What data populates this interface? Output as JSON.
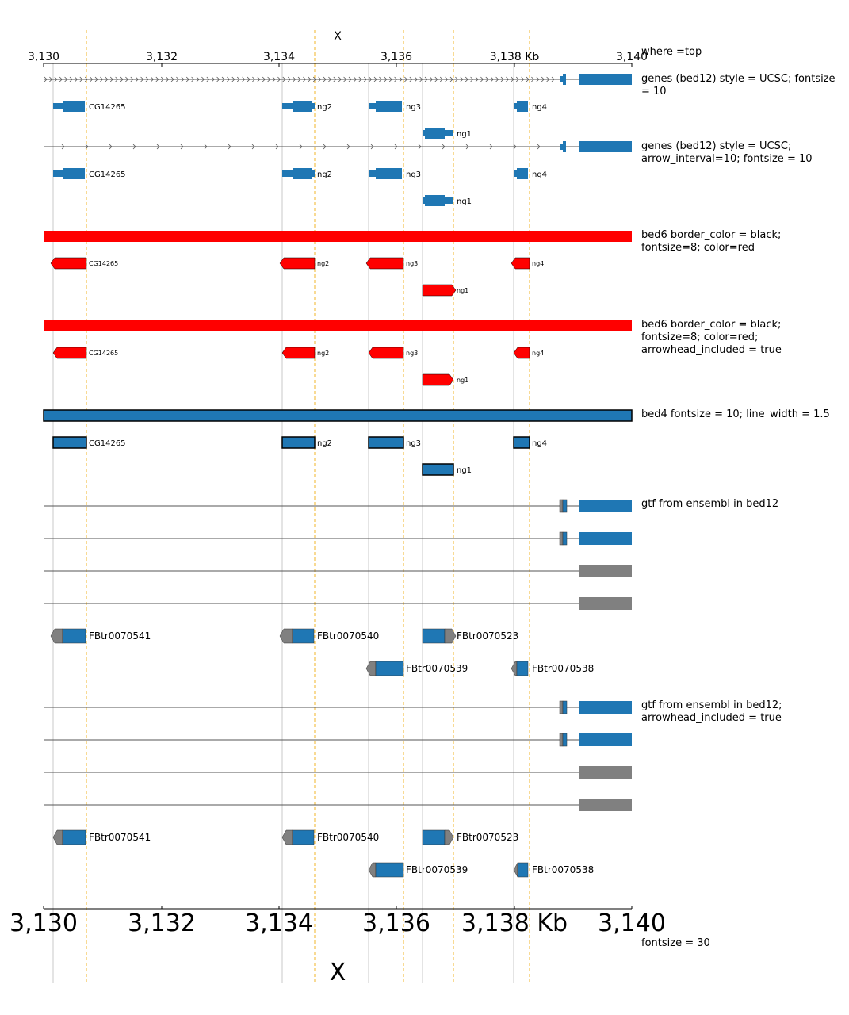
{
  "colors": {
    "blue": "#1f77b4",
    "red": "#ff0000",
    "gray": "#808080",
    "guide_gray": "#c8c8c8",
    "guide_orange": "#f0b429"
  },
  "x_axis_top": {
    "chrom": "X",
    "ticks": [
      "3,130",
      "3,132",
      "3,134",
      "3,136",
      "3,138 Kb",
      "3,140"
    ],
    "label": "where =top"
  },
  "x_axis_bottom": {
    "chrom": "X",
    "ticks": [
      "3,130",
      "3,132",
      "3,134",
      "3,136",
      "3,138 Kb",
      "3,140"
    ],
    "label": "fontsize = 30"
  },
  "tracks": [
    {
      "id": "t1",
      "label": [
        "genes (bed12) style = UCSC; fontsize",
        "= 10"
      ]
    },
    {
      "id": "t2",
      "label": [
        "genes (bed12) style = UCSC;",
        "arrow_interval=10; fontsize = 10"
      ]
    },
    {
      "id": "t3",
      "label": [
        "bed6 border_color = black;",
        "fontsize=8; color=red"
      ]
    },
    {
      "id": "t4",
      "label": [
        "bed6 border_color = black;",
        "fontsize=8; color=red;",
        "arrowhead_included = true"
      ]
    },
    {
      "id": "t5",
      "label": [
        "bed4 fontsize = 10; line_width = 1.5"
      ]
    },
    {
      "id": "t6",
      "label": [
        "gtf from ensembl in bed12"
      ]
    },
    {
      "id": "t7",
      "label": [
        "gtf from ensembl in bed12;",
        "arrowhead_included = true"
      ]
    }
  ],
  "bed_genes": [
    "CG14265",
    "ng2",
    "ng3",
    "ng4",
    "ng1"
  ],
  "gtf_transcripts": [
    "FBtr0070541",
    "FBtr0070540",
    "FBtr0070523",
    "FBtr0070539",
    "FBtr0070538"
  ]
}
